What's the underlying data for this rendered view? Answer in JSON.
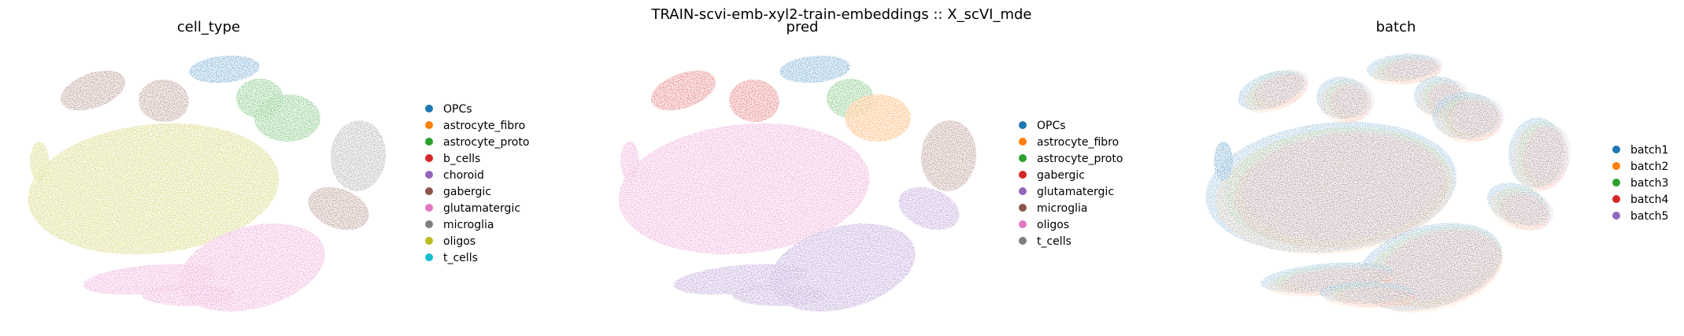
{
  "figure": {
    "suptitle": "TRAIN-scvi-emb-xyl2-train-embeddings :: X_scVI_mde"
  },
  "chart_data": [
    {
      "type": "scatter",
      "title": "cell_type",
      "legend_placement": "right",
      "categories": [
        {
          "name": "OPCs",
          "color": "#1f77b4"
        },
        {
          "name": "astrocyte_fibro",
          "color": "#ff7f0e"
        },
        {
          "name": "astrocyte_proto",
          "color": "#2ca02c"
        },
        {
          "name": "b_cells",
          "color": "#d62728"
        },
        {
          "name": "choroid",
          "color": "#9467bd"
        },
        {
          "name": "gabergic",
          "color": "#8c564b"
        },
        {
          "name": "glutamatergic",
          "color": "#e377c2"
        },
        {
          "name": "microglia",
          "color": "#7f7f7f"
        },
        {
          "name": "oligos",
          "color": "#bcbd22"
        },
        {
          "name": "t_cells",
          "color": "#17becf"
        }
      ],
      "axes_visible": false
    },
    {
      "type": "scatter",
      "title": "pred",
      "legend_placement": "right",
      "categories": [
        {
          "name": "OPCs",
          "color": "#1f77b4"
        },
        {
          "name": "astrocyte_fibro",
          "color": "#ff7f0e"
        },
        {
          "name": "astrocyte_proto",
          "color": "#2ca02c"
        },
        {
          "name": "gabergic",
          "color": "#d62728"
        },
        {
          "name": "glutamatergic",
          "color": "#9467bd"
        },
        {
          "name": "microglia",
          "color": "#8c564b"
        },
        {
          "name": "oligos",
          "color": "#e377c2"
        },
        {
          "name": "t_cells",
          "color": "#7f7f7f"
        }
      ],
      "axes_visible": false
    },
    {
      "type": "scatter",
      "title": "batch",
      "legend_placement": "right",
      "categories": [
        {
          "name": "batch1",
          "color": "#1f77b4"
        },
        {
          "name": "batch2",
          "color": "#ff7f0e"
        },
        {
          "name": "batch3",
          "color": "#2ca02c"
        },
        {
          "name": "batch4",
          "color": "#d62728"
        },
        {
          "name": "batch5",
          "color": "#9467bd"
        }
      ],
      "axes_visible": false
    }
  ]
}
